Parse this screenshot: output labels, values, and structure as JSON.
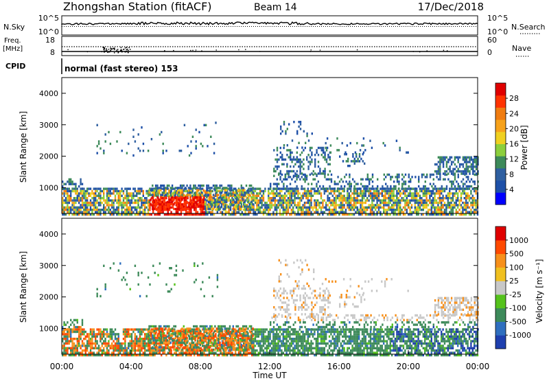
{
  "header": {
    "station": "Zhongshan Station (fitACF)",
    "beam": "Beam 14",
    "date": "17/Dec/2018"
  },
  "nsky_panel": {
    "label": "N.Sky",
    "left_ticks": [
      "10^5",
      "10^0"
    ],
    "right_ticks": [
      "10^5",
      "10^0"
    ],
    "right_label": "N.Search"
  },
  "freq_panel": {
    "label_line1": "Freq.",
    "label_line2": "[MHz]",
    "left_ticks": [
      "18",
      "8"
    ],
    "right_ticks": [
      "60",
      "0"
    ],
    "right_label": "Nave"
  },
  "cpid_panel": {
    "label": "CPID",
    "mode_text": "normal (fast stereo) 153"
  },
  "power_panel": {
    "ylabel": "Slant Range [km]",
    "yticks": [
      "4000",
      "3000",
      "2000",
      "1000"
    ],
    "colorbar_title": "Power [dB]",
    "colorbar_ticks": [
      "28",
      "24",
      "20",
      "16",
      "12",
      "8",
      "4"
    ],
    "colors": [
      "#0000ff",
      "#1e50a8",
      "#2f5fa0",
      "#3d8a5a",
      "#8ccf3c",
      "#f0d020",
      "#f7a21b",
      "#f07c10",
      "#ff3300",
      "#e00000"
    ]
  },
  "velocity_panel": {
    "ylabel": "Slant Range [km]",
    "yticks": [
      "4000",
      "3000",
      "2000",
      "1000"
    ],
    "colorbar_title": "Velocity [m s⁻¹]",
    "colorbar_ticks": [
      "1000",
      "500",
      "100",
      "25",
      "-25",
      "-100",
      "-500",
      "-1000"
    ],
    "colors": [
      "#1e3fae",
      "#2f6fbf",
      "#3d8a5a",
      "#55c21c",
      "#c8c8c8",
      "#f0c020",
      "#f7901b",
      "#ff4a00",
      "#e00000"
    ]
  },
  "x_axis": {
    "ticks": [
      "00:00",
      "04:00",
      "08:00",
      "12:00",
      "16:00",
      "20:00",
      "00:00"
    ],
    "label": "Time UT"
  }
}
